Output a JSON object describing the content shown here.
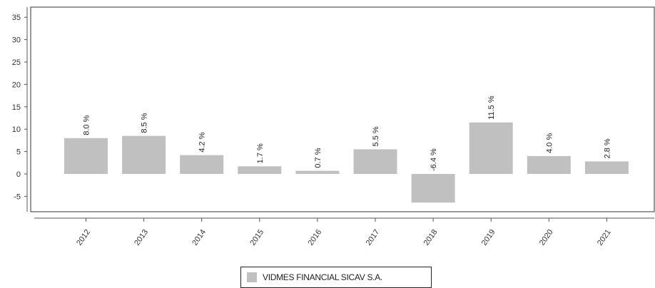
{
  "chart_data": {
    "type": "bar",
    "categories": [
      "2012",
      "2013",
      "2014",
      "2015",
      "2016",
      "2017",
      "2018",
      "2019",
      "2020",
      "2021"
    ],
    "series": [
      {
        "name": "VIDMES FINANCIAL SICAV S.A.",
        "values": [
          8.0,
          8.5,
          4.2,
          1.7,
          0.7,
          5.5,
          -6.4,
          11.5,
          4.0,
          2.8
        ],
        "labels": [
          "8.0 %",
          "8.5 %",
          "4.2 %",
          "1.7 %",
          "0.7 %",
          "5.5 %",
          "-6.4 %",
          "11.5 %",
          "4.0 %",
          "2.8 %"
        ]
      }
    ],
    "y_ticks": [
      "35",
      "30",
      "25",
      "20",
      "15",
      "10",
      "5",
      "0",
      "-5"
    ],
    "ylim": [
      -8.5,
      37
    ],
    "grid": false,
    "legend_position": "bottom-center",
    "colors": {
      "bar": "#c0c0c0",
      "axis": "#555555",
      "frame": "#333333"
    }
  },
  "legend": {
    "label": "VIDMES FINANCIAL SICAV S.A.",
    "swatch_color": "#c0c0c0"
  }
}
